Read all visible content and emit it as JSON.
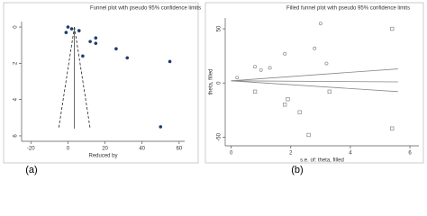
{
  "chart_data": [
    {
      "type": "scatter",
      "label": "(a)",
      "title": "Funnel plot with pseudo 95% confidence limits",
      "x_label": "Reduced by",
      "xlim": [
        -25,
        63
      ],
      "xticks": [
        -20,
        0,
        20,
        40,
        60
      ],
      "ylim": [
        -0.3,
        6.3
      ],
      "yticks": [
        0,
        2,
        4,
        6
      ],
      "y_reversed": true,
      "series": [
        {
          "marker": "dot",
          "color": "#1f3b6e",
          "x": [
            0,
            2,
            -1,
            6,
            12,
            15,
            15,
            8,
            26,
            32,
            55,
            50
          ],
          "y": [
            0,
            0.1,
            0.3,
            0.2,
            0.8,
            0.6,
            0.9,
            1.6,
            1.2,
            1.7,
            1.9,
            5.5
          ]
        }
      ],
      "lines": [
        {
          "color": "#222222",
          "dash": true,
          "x": [
            3.5,
            -5
          ],
          "y": [
            0,
            5.6
          ]
        },
        {
          "color": "#222222",
          "dash": true,
          "x": [
            3.5,
            12
          ],
          "y": [
            0,
            5.6
          ]
        },
        {
          "color": "#444444",
          "dash": false,
          "x": [
            3.5,
            3.5
          ],
          "y": [
            0,
            5.6
          ]
        }
      ]
    },
    {
      "type": "scatter",
      "label": "(b)",
      "title": "Filled funnel plot with pseudo 95% confidence limits",
      "x_label": "s.e. of: theta, filled",
      "y_label": "theta, filled",
      "xlim": [
        -0.2,
        6.3
      ],
      "xticks": [
        0,
        2,
        4,
        6
      ],
      "ylim": [
        -58,
        60
      ],
      "yticks": [
        -50,
        0,
        50
      ],
      "y_reversed": false,
      "series": [
        {
          "marker": "circle",
          "color": "#888888",
          "x": [
            0.2,
            0.8,
            1.0,
            1.3,
            1.8,
            2.8,
            3.2,
            3.0
          ],
          "y": [
            5,
            15,
            12,
            14,
            27,
            32,
            18,
            55
          ]
        },
        {
          "marker": "square",
          "color": "#888888",
          "x": [
            0.8,
            1.8,
            1.9,
            2.3,
            2.6,
            3.3,
            5.4,
            5.4
          ],
          "y": [
            -8,
            -20,
            -15,
            -27,
            -48,
            -8,
            -42,
            50
          ]
        }
      ],
      "lines": [
        {
          "color": "#888888",
          "dash": false,
          "x": [
            0,
            5.6
          ],
          "y": [
            2,
            13
          ]
        },
        {
          "color": "#888888",
          "dash": false,
          "x": [
            0,
            5.6
          ],
          "y": [
            2,
            1
          ]
        },
        {
          "color": "#888888",
          "dash": false,
          "x": [
            0,
            5.6
          ],
          "y": [
            2,
            -8
          ]
        }
      ]
    }
  ]
}
